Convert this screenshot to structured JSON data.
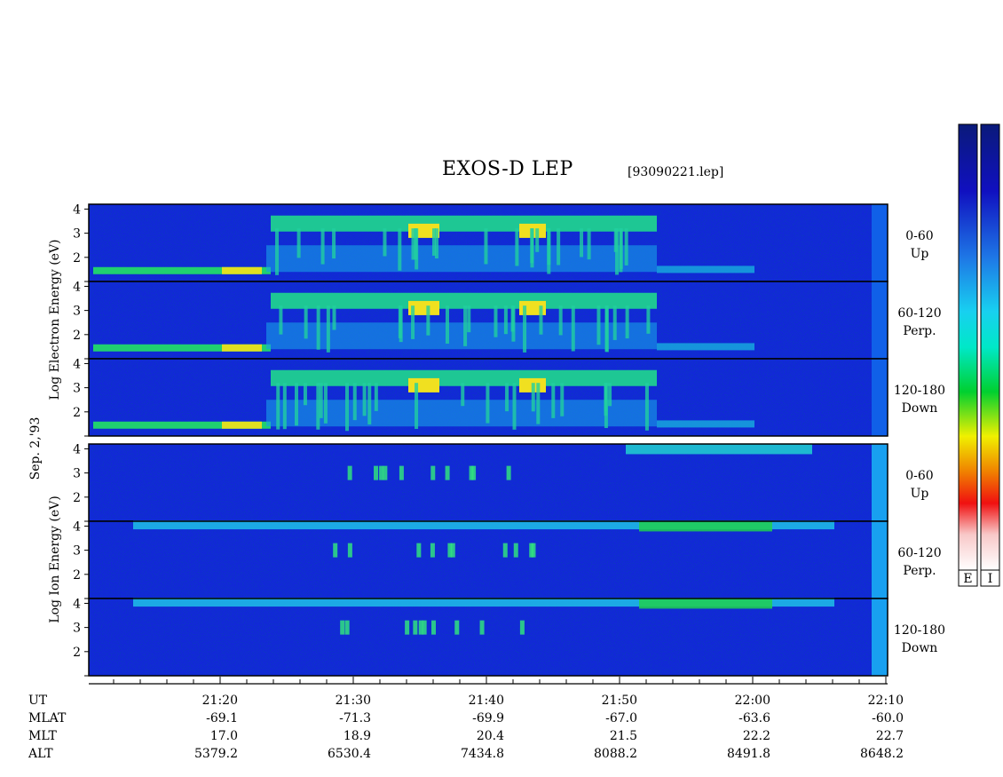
{
  "title": "EXOS-D LEP",
  "file": "[93090221.lep]",
  "date_label": "Sep. 2,'93",
  "electron_ylabel": "Log Electron Energy (eV)",
  "ion_ylabel": "Log Ion Energy (eV)",
  "colorbar": {
    "labels": [
      "E",
      "I"
    ],
    "colors": [
      "#0a1a7a",
      "#1010c0",
      "#1e78e6",
      "#18d0f0",
      "#00e8c8",
      "#00d030",
      "#f0f000",
      "#f08000",
      "#f01010",
      "#f8c8c8",
      "#ffffff"
    ]
  },
  "chart_data": [
    {
      "type": "heatmap",
      "species": "Electron",
      "ylabel": "Log Electron Energy (eV)",
      "ylim": [
        1,
        4.2
      ],
      "yticks": [
        2,
        3,
        4
      ],
      "panels": [
        {
          "angle": "0-60",
          "direction": "Up"
        },
        {
          "angle": "60-120",
          "direction": "Perp."
        },
        {
          "angle": "120-180",
          "direction": "Down"
        }
      ]
    },
    {
      "type": "heatmap",
      "species": "Ion",
      "ylabel": "Log Ion Energy (eV)",
      "ylim": [
        1,
        4.2
      ],
      "yticks": [
        2,
        3,
        4
      ],
      "panels": [
        {
          "angle": "0-60",
          "direction": "Up"
        },
        {
          "angle": "60-120",
          "direction": "Perp."
        },
        {
          "angle": "120-180",
          "direction": "Down"
        }
      ]
    }
  ],
  "time_axis": {
    "ticks": [
      "21:20",
      "21:30",
      "21:40",
      "21:50",
      "22:00",
      "22:10"
    ],
    "rows": [
      {
        "name": "UT",
        "values": [
          "21:20",
          "21:30",
          "21:40",
          "21:50",
          "22:00",
          "22:10"
        ]
      },
      {
        "name": "MLAT",
        "values": [
          "-69.1",
          "-71.3",
          "-69.9",
          "-67.0",
          "-63.6",
          "-60.0"
        ]
      },
      {
        "name": "MLT",
        "values": [
          "17.0",
          "18.9",
          "20.4",
          "21.5",
          "22.2",
          "22.7"
        ]
      },
      {
        "name": "ALT",
        "values": [
          "5379.2",
          "6530.4",
          "7434.8",
          "8088.2",
          "8491.8",
          "8648.2"
        ]
      }
    ]
  }
}
